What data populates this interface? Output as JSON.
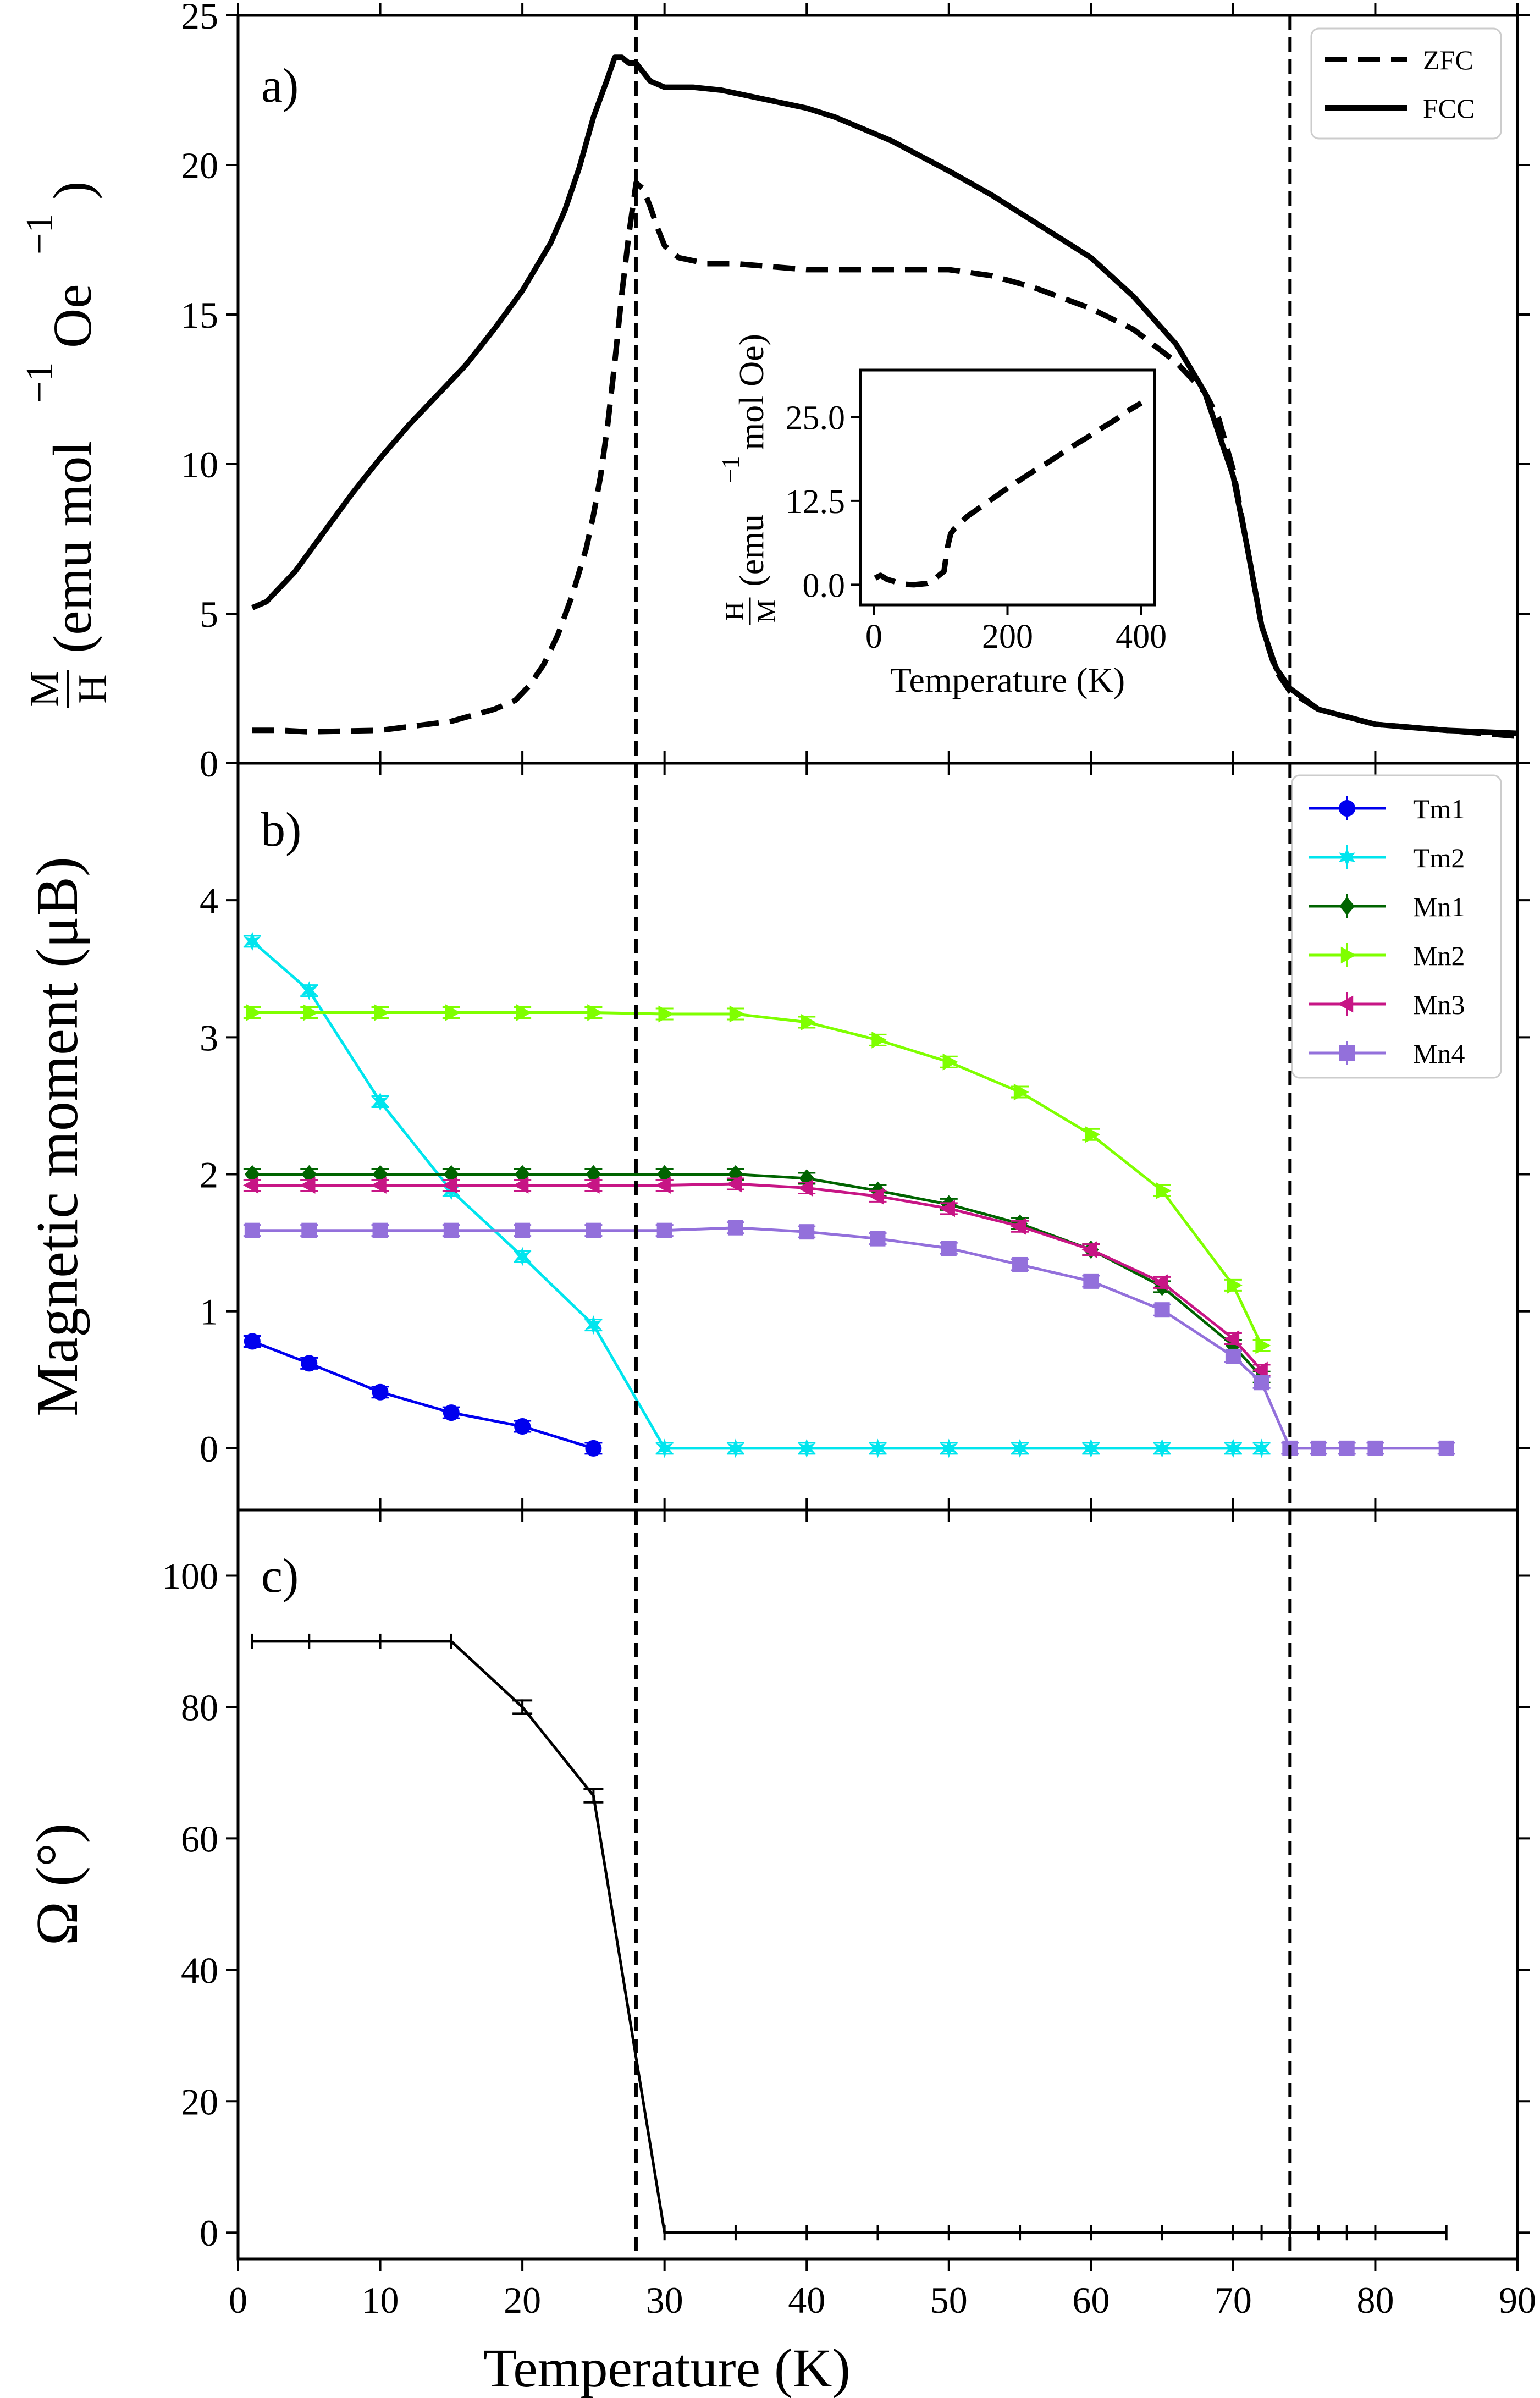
{
  "chart_data": [
    {
      "type": "line",
      "panel_label": "a)",
      "ylabel": "M/H (emu mol^-1 Oe^-1)",
      "ylabel_parts": {
        "frac_num": "M",
        "frac_den": "H",
        "prefix": "(emu mol",
        "mid": "Oe",
        "suffix": ")",
        "exp": "−1"
      },
      "xlim": [
        0,
        90
      ],
      "ylim": [
        0,
        25
      ],
      "yticks": [
        0,
        5,
        10,
        15,
        20,
        25
      ],
      "legend_position": "top-right",
      "series": [
        {
          "name": "ZFC",
          "style": "dashed",
          "x": [
            1,
            3,
            5,
            10,
            15,
            18,
            19.5,
            20.5,
            21.5,
            22.5,
            23.5,
            24.5,
            25,
            25.5,
            26,
            26.5,
            27,
            27.5,
            28,
            28.5,
            29,
            29.5,
            30,
            31,
            33,
            35,
            40,
            45,
            50,
            53,
            56,
            60,
            63,
            66,
            68,
            69,
            70,
            71,
            72,
            73,
            74,
            76,
            80,
            85,
            90
          ],
          "y": [
            1.1,
            1.1,
            1.05,
            1.1,
            1.4,
            1.8,
            2.1,
            2.6,
            3.3,
            4.3,
            5.6,
            7.2,
            8.3,
            9.6,
            11.3,
            13.4,
            15.7,
            17.7,
            19.4,
            19.2,
            18.6,
            17.9,
            17.3,
            16.9,
            16.7,
            16.7,
            16.5,
            16.5,
            16.5,
            16.3,
            15.9,
            15.2,
            14.5,
            13.4,
            12.4,
            11.5,
            9.8,
            7.2,
            4.6,
            3.1,
            2.4,
            1.8,
            1.3,
            1.1,
            0.9
          ]
        },
        {
          "name": "FCC",
          "style": "solid",
          "x": [
            1,
            2,
            4,
            6,
            8,
            10,
            12,
            14,
            16,
            18,
            20,
            22,
            23,
            24,
            25,
            26,
            26.5,
            27,
            27.5,
            28,
            28.5,
            29,
            30,
            32,
            34,
            36,
            38,
            40,
            42,
            44,
            46,
            48,
            50,
            53,
            56,
            60,
            63,
            66,
            68,
            69,
            70,
            71,
            72,
            73,
            74,
            76,
            80,
            85,
            90
          ],
          "y": [
            5.2,
            5.4,
            6.4,
            7.7,
            9.0,
            10.2,
            11.3,
            12.3,
            13.3,
            14.5,
            15.8,
            17.4,
            18.5,
            19.9,
            21.6,
            22.9,
            23.6,
            23.6,
            23.4,
            23.4,
            23.1,
            22.8,
            22.6,
            22.6,
            22.5,
            22.3,
            22.1,
            21.9,
            21.6,
            21.2,
            20.8,
            20.3,
            19.8,
            19.0,
            18.1,
            16.9,
            15.6,
            14.0,
            12.4,
            11.0,
            9.6,
            7.2,
            4.6,
            3.2,
            2.5,
            1.8,
            1.3,
            1.1,
            1.0
          ]
        }
      ],
      "inset": {
        "type": "line",
        "xlabel": "Temperature (K)",
        "ylabel": "H/M (emu^-1 mol Oe)",
        "ylabel_parts": {
          "frac_num": "H",
          "frac_den": "M",
          "prefix": "(emu",
          "suffix": "mol Oe)",
          "exp": "−1"
        },
        "xlim": [
          -20,
          420
        ],
        "ylim": [
          -3,
          32
        ],
        "xticks": [
          0,
          200,
          400
        ],
        "yticks": [
          0.0,
          12.5,
          25.0
        ],
        "ytick_labels": [
          "0.0",
          "12.5",
          "25.0"
        ],
        "x": [
          2,
          10,
          20,
          30,
          40,
          60,
          80,
          90,
          100,
          105,
          110,
          115,
          120,
          140,
          160,
          180,
          200,
          220,
          240,
          260,
          280,
          300,
          320,
          340,
          360,
          380,
          400
        ],
        "y": [
          1.0,
          1.4,
          0.8,
          0.5,
          0.1,
          0.0,
          0.2,
          0.8,
          1.6,
          2.0,
          5.5,
          7.6,
          8.3,
          10.2,
          11.6,
          13.0,
          14.4,
          15.7,
          17.0,
          18.2,
          19.5,
          20.8,
          22.0,
          23.3,
          24.5,
          25.9,
          27.1
        ]
      }
    },
    {
      "type": "line",
      "panel_label": "b)",
      "ylabel": "Magnetic moment (μB)",
      "xlim": [
        0,
        90
      ],
      "ylim": [
        -0.45,
        5.0
      ],
      "yticks": [
        0,
        1,
        2,
        3,
        4
      ],
      "legend_position": "top-right",
      "series": [
        {
          "name": "Tm1",
          "color": "#0000ee",
          "marker": "circle",
          "x": [
            1,
            5,
            10,
            15,
            20,
            25
          ],
          "y": [
            0.78,
            0.62,
            0.41,
            0.26,
            0.16,
            0.0
          ]
        },
        {
          "name": "Tm2",
          "color": "#00e5ee",
          "marker": "star",
          "x": [
            1,
            5,
            10,
            15,
            20,
            25,
            30,
            35,
            40,
            45,
            50,
            55,
            60,
            65,
            70,
            72
          ],
          "y": [
            3.7,
            3.34,
            2.53,
            1.88,
            1.4,
            0.9,
            0.0,
            0.0,
            0.0,
            0.0,
            0.0,
            0.0,
            0.0,
            0.0,
            0.0,
            0.0
          ]
        },
        {
          "name": "Mn1",
          "color": "#006400",
          "marker": "diamond",
          "x": [
            1,
            5,
            10,
            15,
            20,
            25,
            30,
            35,
            40,
            45,
            50,
            55,
            60,
            65,
            70,
            72
          ],
          "y": [
            2.0,
            2.0,
            2.0,
            2.0,
            2.0,
            2.0,
            2.0,
            2.0,
            1.97,
            1.88,
            1.78,
            1.64,
            1.45,
            1.18,
            0.75,
            0.52
          ]
        },
        {
          "name": "Mn2",
          "color": "#7fff00",
          "marker": "triangle-right",
          "x": [
            1,
            5,
            10,
            15,
            20,
            25,
            30,
            35,
            40,
            45,
            50,
            55,
            60,
            65,
            70,
            72
          ],
          "y": [
            3.18,
            3.18,
            3.18,
            3.18,
            3.18,
            3.18,
            3.17,
            3.17,
            3.11,
            2.98,
            2.82,
            2.6,
            2.29,
            1.88,
            1.19,
            0.75
          ]
        },
        {
          "name": "Mn3",
          "color": "#c71585",
          "marker": "triangle-left",
          "x": [
            1,
            5,
            10,
            15,
            20,
            25,
            30,
            35,
            40,
            45,
            50,
            55,
            60,
            65,
            70,
            72
          ],
          "y": [
            1.92,
            1.92,
            1.92,
            1.92,
            1.92,
            1.92,
            1.92,
            1.93,
            1.9,
            1.84,
            1.75,
            1.62,
            1.45,
            1.21,
            0.8,
            0.57
          ]
        },
        {
          "name": "Mn4",
          "color": "#9370db",
          "marker": "square",
          "x": [
            1,
            5,
            10,
            15,
            20,
            25,
            30,
            35,
            40,
            45,
            50,
            55,
            60,
            65,
            70,
            72,
            74,
            76,
            78,
            80,
            85
          ],
          "y": [
            1.59,
            1.59,
            1.59,
            1.59,
            1.59,
            1.59,
            1.59,
            1.61,
            1.58,
            1.53,
            1.46,
            1.34,
            1.22,
            1.01,
            0.67,
            0.48,
            0.0,
            0.0,
            0.0,
            0.0,
            0.0
          ]
        }
      ],
      "zero_points_after_transition": {
        "x": [
          74,
          76,
          78,
          80,
          85
        ],
        "y": [
          0,
          0,
          0,
          0,
          0
        ]
      }
    },
    {
      "type": "line",
      "panel_label": "c)",
      "ylabel": "Ω (°)",
      "xlabel": "Temperature (K)",
      "xlim": [
        0,
        90
      ],
      "ylim": [
        -4,
        110
      ],
      "xticks": [
        0,
        10,
        20,
        30,
        40,
        50,
        60,
        70,
        80,
        90
      ],
      "yticks": [
        0,
        20,
        40,
        60,
        80,
        100
      ],
      "series": [
        {
          "name": "",
          "color": "#000000",
          "marker": "errorbar",
          "x": [
            1,
            5,
            10,
            15,
            20,
            25,
            30,
            35,
            40,
            45,
            50,
            55,
            60,
            65,
            70,
            72,
            74,
            76,
            78,
            80,
            85
          ],
          "y": [
            90,
            90,
            90,
            90,
            80,
            66.5,
            0,
            0,
            0,
            0,
            0,
            0,
            0,
            0,
            0,
            0,
            0,
            0,
            0,
            0,
            0
          ]
        }
      ]
    }
  ],
  "vertical_lines_x": [
    28,
    74
  ]
}
